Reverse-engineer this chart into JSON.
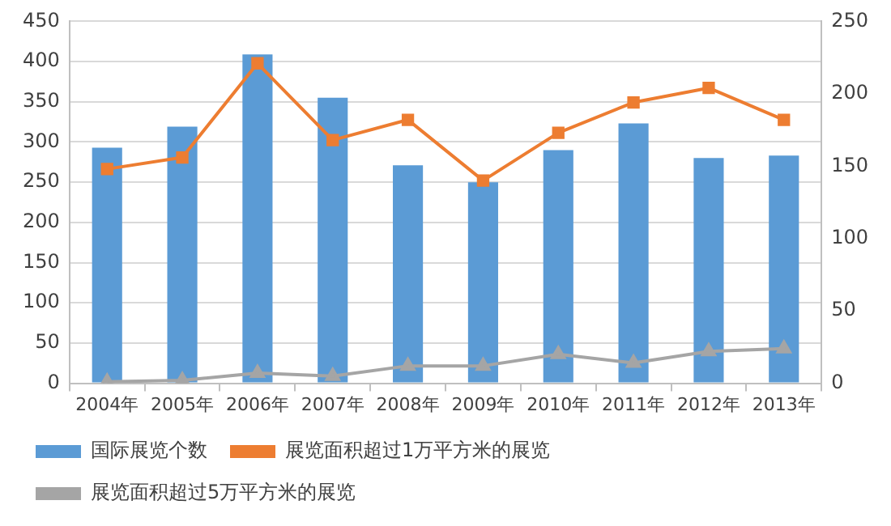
{
  "chart_data": {
    "type": "bar",
    "categories": [
      "2004年",
      "2005年",
      "2006年",
      "2007年",
      "2008年",
      "2009年",
      "2010年",
      "2011年",
      "2012年",
      "2013年"
    ],
    "series": [
      {
        "name": "国际展览个数",
        "color": "#5b9bd5",
        "values": [
          293,
          319,
          409,
          355,
          271,
          250,
          290,
          323,
          280,
          283
        ]
      },
      {
        "name": "展览面积超过1万平方米的展览",
        "type": "line",
        "axis": "y2",
        "marker": "square",
        "color": "#ed7d31",
        "values": [
          148,
          156,
          221,
          168,
          182,
          140,
          173,
          194,
          204,
          182
        ]
      },
      {
        "name": "展览面积超过5万平方米的展览",
        "type": "line",
        "axis": "y2",
        "marker": "triangle",
        "color": "#a5a5a5",
        "values": [
          1,
          2,
          7,
          5,
          12,
          12,
          20,
          14,
          22,
          24
        ]
      }
    ],
    "ylim": [
      0,
      450
    ],
    "yticks": [
      0,
      50,
      100,
      150,
      200,
      250,
      300,
      350,
      400,
      450
    ],
    "y2lim": [
      0,
      250
    ],
    "y2ticks": [
      0,
      50,
      100,
      150,
      200,
      250
    ],
    "grid": "y",
    "legend": "bottom"
  }
}
